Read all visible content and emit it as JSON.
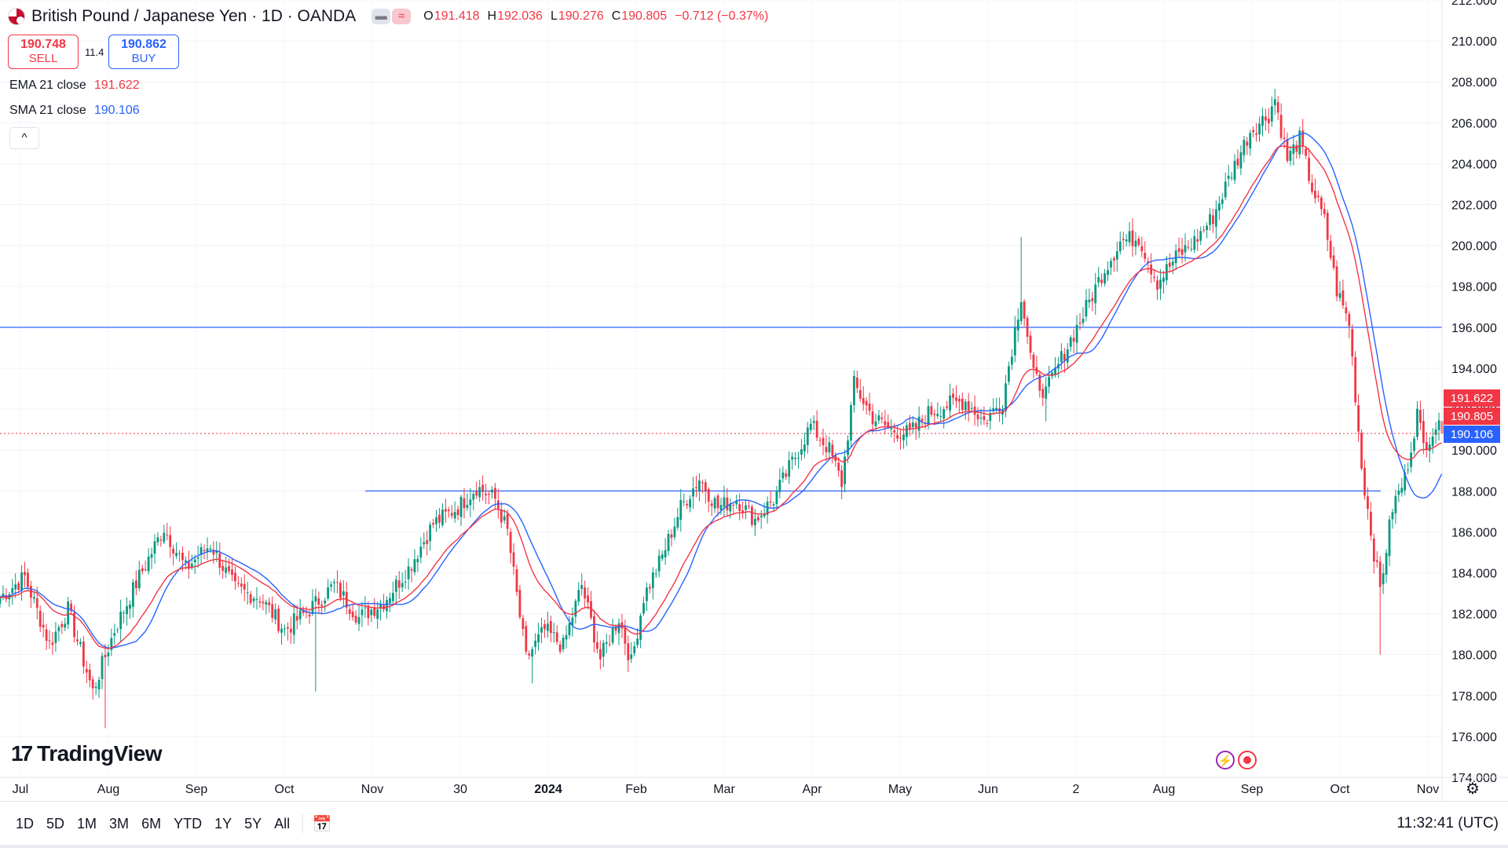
{
  "header": {
    "symbol": "British Pound / Japanese Yen · 1D · OANDA",
    "icon_flag": "gbp-jpy-flag-icon",
    "toggle_left": "▬",
    "toggle_right": "≈",
    "open_label": "O",
    "open": "191.418",
    "high_label": "H",
    "high": "192.036",
    "low_label": "L",
    "low": "190.276",
    "close_label": "C",
    "close": "190.805",
    "change": "−0.712 (−0.37%)"
  },
  "trade": {
    "sell_price": "190.748",
    "sell_label": "SELL",
    "spread": "11.4",
    "buy_price": "190.862",
    "buy_label": "BUY"
  },
  "indicators": {
    "ema_label": "EMA 21 close",
    "ema_value": "191.622",
    "sma_label": "SMA 21 close",
    "sma_value": "190.106",
    "collapse": "^"
  },
  "logo": {
    "mark": "17",
    "text": "TradingView"
  },
  "toolbar": {
    "ranges": [
      "1D",
      "5D",
      "1M",
      "3M",
      "6M",
      "YTD",
      "1Y",
      "5Y",
      "All"
    ],
    "time": "11:32:41 (UTC)"
  },
  "colors": {
    "up": "#089981",
    "down": "#f23645",
    "ema": "#f23645",
    "sma": "#2962ff",
    "hline": "#2962ff"
  },
  "chart_data": {
    "type": "candlestick",
    "y_axis": {
      "min": 174,
      "max": 212,
      "ticks": [
        "212.000",
        "210.000",
        "208.000",
        "206.000",
        "204.000",
        "202.000",
        "200.000",
        "198.000",
        "196.000",
        "194.000",
        "192.000",
        "190.000",
        "188.000",
        "186.000",
        "184.000",
        "182.000",
        "180.000",
        "178.000",
        "176.000",
        "174.000"
      ]
    },
    "x_axis": {
      "labels": [
        "Jul",
        "Aug",
        "Sep",
        "Oct",
        "Nov",
        "30",
        "2024",
        "Feb",
        "Mar",
        "Apr",
        "May",
        "Jun",
        "2",
        "Aug",
        "Sep",
        "Oct",
        "Nov"
      ],
      "bold": [
        "2024"
      ]
    },
    "horizontal_lines": [
      196.0,
      188.0
    ],
    "price_labels": [
      {
        "text": "191.622",
        "value": 191.622,
        "color": "#f23645"
      },
      {
        "text": "190.805",
        "value": 190.805,
        "color": "#f23645"
      },
      {
        "text": "190.106",
        "value": 190.106,
        "color": "#2962ff"
      }
    ],
    "close_waypoints": [
      [
        0,
        182.8
      ],
      [
        8,
        183.8
      ],
      [
        16,
        180.5
      ],
      [
        22,
        182.2
      ],
      [
        30,
        178.2
      ],
      [
        37,
        181.2
      ],
      [
        45,
        183.8
      ],
      [
        53,
        186.2
      ],
      [
        60,
        184.2
      ],
      [
        68,
        185.4
      ],
      [
        76,
        183.2
      ],
      [
        84,
        182.8
      ],
      [
        92,
        181.2
      ],
      [
        100,
        182.2
      ],
      [
        108,
        183.4
      ],
      [
        116,
        181.8
      ],
      [
        124,
        182.6
      ],
      [
        132,
        184.2
      ],
      [
        140,
        186.4
      ],
      [
        148,
        187.2
      ],
      [
        154,
        188.2
      ],
      [
        160,
        187.6
      ],
      [
        164,
        186.0
      ],
      [
        170,
        179.8
      ],
      [
        176,
        181.2
      ],
      [
        182,
        180.4
      ],
      [
        188,
        183.4
      ],
      [
        194,
        179.8
      ],
      [
        200,
        181.8
      ],
      [
        204,
        179.6
      ],
      [
        208,
        182.8
      ],
      [
        214,
        184.8
      ],
      [
        220,
        187.2
      ],
      [
        226,
        188.6
      ],
      [
        232,
        187.2
      ],
      [
        238,
        187.6
      ],
      [
        244,
        186.6
      ],
      [
        250,
        187.6
      ],
      [
        256,
        189.4
      ],
      [
        262,
        191.2
      ],
      [
        268,
        190.0
      ],
      [
        272,
        188.4
      ],
      [
        276,
        193.2
      ],
      [
        282,
        191.6
      ],
      [
        288,
        191.0
      ],
      [
        294,
        190.8
      ],
      [
        300,
        191.8
      ],
      [
        306,
        192.2
      ],
      [
        312,
        192.4
      ],
      [
        318,
        191.4
      ],
      [
        324,
        192.4
      ],
      [
        330,
        197.6
      ],
      [
        334,
        193.6
      ],
      [
        338,
        192.8
      ],
      [
        344,
        194.8
      ],
      [
        350,
        196.6
      ],
      [
        356,
        198.6
      ],
      [
        362,
        200.2
      ],
      [
        368,
        200.4
      ],
      [
        374,
        198.2
      ],
      [
        380,
        199.4
      ],
      [
        386,
        200.2
      ],
      [
        392,
        201.4
      ],
      [
        398,
        203.6
      ],
      [
        404,
        205.6
      ],
      [
        410,
        206.4
      ],
      [
        412,
        207.2
      ],
      [
        416,
        204.2
      ],
      [
        420,
        205.2
      ],
      [
        424,
        202.8
      ],
      [
        428,
        201.2
      ],
      [
        432,
        197.8
      ],
      [
        436,
        196.2
      ],
      [
        440,
        189.2
      ],
      [
        444,
        185.0
      ],
      [
        446,
        183.2
      ],
      [
        450,
        187.2
      ],
      [
        454,
        188.6
      ],
      [
        458,
        191.8
      ],
      [
        460,
        190.2
      ],
      [
        464,
        191.2
      ],
      [
        466,
        190.8
      ]
    ],
    "wick_events": [
      {
        "i": 34,
        "low": 176.4
      },
      {
        "i": 102,
        "low": 178.2
      },
      {
        "i": 172,
        "low": 178.6
      },
      {
        "i": 330,
        "high": 200.4
      },
      {
        "i": 338,
        "low": 191.4
      },
      {
        "i": 446,
        "low": 180.0
      }
    ],
    "candle_count": 467
  }
}
